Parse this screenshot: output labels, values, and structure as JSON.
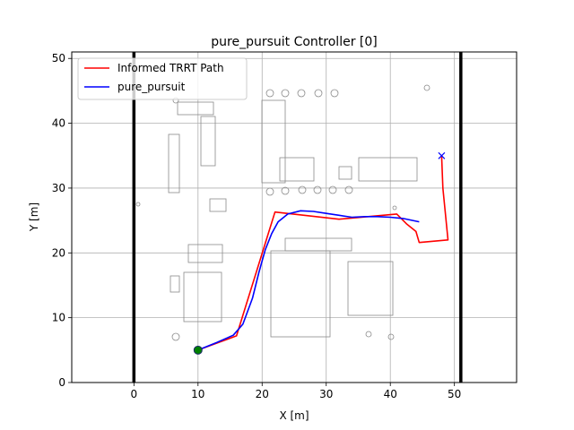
{
  "chart_data": {
    "type": "line",
    "title": "pure_pursuit Controller [0]",
    "xlabel": "X [m]",
    "ylabel": "Y [m]",
    "xlim": [
      -9.7,
      59.7
    ],
    "ylim": [
      0,
      51
    ],
    "xticks": [
      0,
      10,
      20,
      30,
      40,
      50
    ],
    "yticks": [
      0,
      10,
      20,
      30,
      40,
      50
    ],
    "grid": true,
    "legend_position": "upper-left",
    "series": [
      {
        "name": "Informed TRRT Path",
        "color": "#ff0000",
        "x": [
          10,
          16,
          22,
          32,
          41,
          42.5,
          44,
          44.5,
          49,
          48.2,
          48
        ],
        "y": [
          5,
          7.2,
          26.3,
          25.2,
          26,
          24.5,
          23.3,
          21.6,
          22,
          30,
          35
        ]
      },
      {
        "name": "pure_pursuit",
        "color": "#0000ff",
        "x": [
          10,
          13,
          15.5,
          17,
          18.5,
          19.5,
          20.5,
          21.5,
          22.5,
          24,
          26,
          28,
          30,
          32,
          34,
          36,
          38,
          40,
          42,
          44.5
        ],
        "y": [
          5,
          6.2,
          7.3,
          9,
          13,
          17,
          20.5,
          23,
          24.8,
          26,
          26.5,
          26.4,
          26.1,
          25.8,
          25.5,
          25.6,
          25.6,
          25.5,
          25.3,
          24.8
        ]
      }
    ],
    "start_marker": {
      "x": 10,
      "y": 5,
      "color": "#008000"
    },
    "goal_marker": {
      "x": 48,
      "y": 35,
      "color": "#0000ff"
    },
    "boundary_lines": {
      "x": [
        0,
        51
      ],
      "color": "#000000"
    }
  }
}
